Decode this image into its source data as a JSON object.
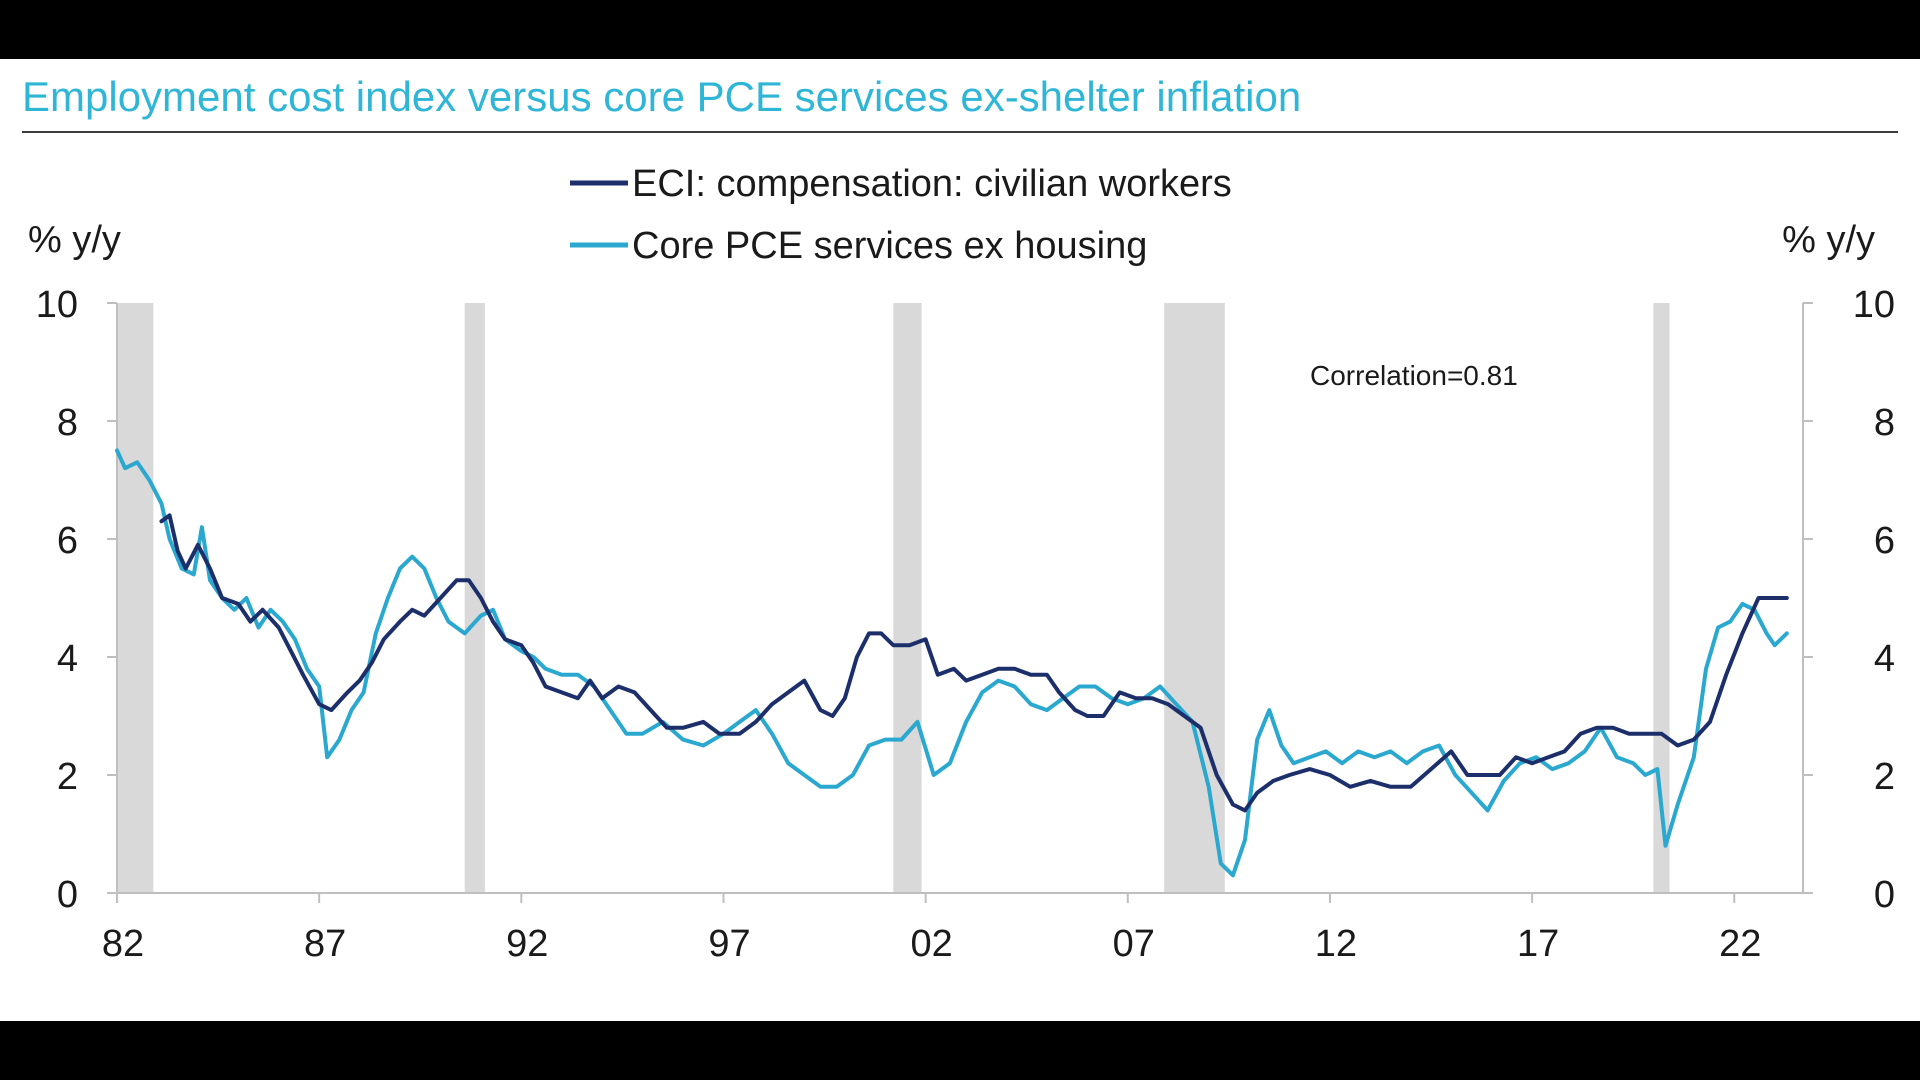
{
  "title": "Employment cost index versus core PCE services ex-shelter inflation",
  "colors": {
    "eci": "#1c2f6b",
    "pce": "#2aa8cf",
    "recession": "#d9d9d9",
    "title": "#2fb6d6"
  },
  "chart_data": {
    "type": "line",
    "left_unit": "% y/y",
    "right_unit": "% y/y",
    "annotation": "Correlation=0.81",
    "ylim": [
      0,
      10
    ],
    "xlim": [
      1982,
      2023.7
    ],
    "yticks": [
      0,
      2,
      4,
      6,
      8,
      10
    ],
    "ytick_labels": [
      "0",
      "2",
      "4",
      "6",
      "8",
      "10"
    ],
    "xticks": [
      1982,
      1987,
      1992,
      1997,
      2002,
      2007,
      2012,
      2017,
      2022
    ],
    "xtick_labels": [
      "82",
      "87",
      "92",
      "97",
      "02",
      "07",
      "12",
      "17",
      "22"
    ],
    "grid": false,
    "legend_position": "top-center",
    "recessions": [
      [
        1982.0,
        1982.9
      ],
      [
        1990.6,
        1991.1
      ],
      [
        2001.2,
        2001.9
      ],
      [
        2007.9,
        2009.4
      ],
      [
        2020.0,
        2020.4
      ]
    ],
    "series": [
      {
        "name": "ECI: compensation: civilian workers",
        "points": [
          [
            1983.1,
            6.3
          ],
          [
            1983.3,
            6.4
          ],
          [
            1983.5,
            5.8
          ],
          [
            1983.7,
            5.5
          ],
          [
            1984.0,
            5.9
          ],
          [
            1984.3,
            5.5
          ],
          [
            1984.6,
            5.0
          ],
          [
            1985.0,
            4.9
          ],
          [
            1985.3,
            4.6
          ],
          [
            1985.6,
            4.8
          ],
          [
            1986.0,
            4.5
          ],
          [
            1986.3,
            4.1
          ],
          [
            1986.6,
            3.7
          ],
          [
            1987.0,
            3.2
          ],
          [
            1987.3,
            3.1
          ],
          [
            1987.7,
            3.4
          ],
          [
            1988.0,
            3.6
          ],
          [
            1988.3,
            3.9
          ],
          [
            1988.6,
            4.3
          ],
          [
            1989.0,
            4.6
          ],
          [
            1989.3,
            4.8
          ],
          [
            1989.6,
            4.7
          ],
          [
            1990.0,
            5.0
          ],
          [
            1990.4,
            5.3
          ],
          [
            1990.7,
            5.3
          ],
          [
            1991.0,
            5.0
          ],
          [
            1991.3,
            4.6
          ],
          [
            1991.6,
            4.3
          ],
          [
            1992.0,
            4.2
          ],
          [
            1992.3,
            3.9
          ],
          [
            1992.6,
            3.5
          ],
          [
            1993.0,
            3.4
          ],
          [
            1993.4,
            3.3
          ],
          [
            1993.7,
            3.6
          ],
          [
            1994.0,
            3.3
          ],
          [
            1994.4,
            3.5
          ],
          [
            1994.8,
            3.4
          ],
          [
            1995.2,
            3.1
          ],
          [
            1995.6,
            2.8
          ],
          [
            1996.0,
            2.8
          ],
          [
            1996.5,
            2.9
          ],
          [
            1996.9,
            2.7
          ],
          [
            1997.4,
            2.7
          ],
          [
            1997.8,
            2.9
          ],
          [
            1998.2,
            3.2
          ],
          [
            1998.6,
            3.4
          ],
          [
            1999.0,
            3.6
          ],
          [
            1999.4,
            3.1
          ],
          [
            1999.7,
            3.0
          ],
          [
            2000.0,
            3.3
          ],
          [
            2000.3,
            4.0
          ],
          [
            2000.6,
            4.4
          ],
          [
            2000.9,
            4.4
          ],
          [
            2001.2,
            4.2
          ],
          [
            2001.6,
            4.2
          ],
          [
            2002.0,
            4.3
          ],
          [
            2002.3,
            3.7
          ],
          [
            2002.7,
            3.8
          ],
          [
            2003.0,
            3.6
          ],
          [
            2003.4,
            3.7
          ],
          [
            2003.8,
            3.8
          ],
          [
            2004.2,
            3.8
          ],
          [
            2004.6,
            3.7
          ],
          [
            2005.0,
            3.7
          ],
          [
            2005.3,
            3.4
          ],
          [
            2005.7,
            3.1
          ],
          [
            2006.0,
            3.0
          ],
          [
            2006.4,
            3.0
          ],
          [
            2006.8,
            3.4
          ],
          [
            2007.2,
            3.3
          ],
          [
            2007.6,
            3.3
          ],
          [
            2008.0,
            3.2
          ],
          [
            2008.4,
            3.0
          ],
          [
            2008.8,
            2.8
          ],
          [
            2009.2,
            2.0
          ],
          [
            2009.6,
            1.5
          ],
          [
            2009.9,
            1.4
          ],
          [
            2010.2,
            1.7
          ],
          [
            2010.6,
            1.9
          ],
          [
            2011.0,
            2.0
          ],
          [
            2011.5,
            2.1
          ],
          [
            2012.0,
            2.0
          ],
          [
            2012.5,
            1.8
          ],
          [
            2013.0,
            1.9
          ],
          [
            2013.5,
            1.8
          ],
          [
            2014.0,
            1.8
          ],
          [
            2014.5,
            2.1
          ],
          [
            2015.0,
            2.4
          ],
          [
            2015.4,
            2.0
          ],
          [
            2015.8,
            2.0
          ],
          [
            2016.2,
            2.0
          ],
          [
            2016.6,
            2.3
          ],
          [
            2017.0,
            2.2
          ],
          [
            2017.4,
            2.3
          ],
          [
            2017.8,
            2.4
          ],
          [
            2018.2,
            2.7
          ],
          [
            2018.6,
            2.8
          ],
          [
            2019.0,
            2.8
          ],
          [
            2019.4,
            2.7
          ],
          [
            2019.8,
            2.7
          ],
          [
            2020.2,
            2.7
          ],
          [
            2020.6,
            2.5
          ],
          [
            2021.0,
            2.6
          ],
          [
            2021.4,
            2.9
          ],
          [
            2021.8,
            3.7
          ],
          [
            2022.2,
            4.4
          ],
          [
            2022.6,
            5.0
          ],
          [
            2023.0,
            5.0
          ],
          [
            2023.3,
            5.0
          ]
        ]
      },
      {
        "name": "Core PCE services ex housing",
        "points": [
          [
            1982.0,
            7.5
          ],
          [
            1982.2,
            7.2
          ],
          [
            1982.5,
            7.3
          ],
          [
            1982.8,
            7.0
          ],
          [
            1983.1,
            6.6
          ],
          [
            1983.3,
            6.0
          ],
          [
            1983.6,
            5.5
          ],
          [
            1983.9,
            5.4
          ],
          [
            1984.1,
            6.2
          ],
          [
            1984.3,
            5.3
          ],
          [
            1984.6,
            5.0
          ],
          [
            1984.9,
            4.8
          ],
          [
            1985.2,
            5.0
          ],
          [
            1985.5,
            4.5
          ],
          [
            1985.8,
            4.8
          ],
          [
            1986.1,
            4.6
          ],
          [
            1986.4,
            4.3
          ],
          [
            1986.7,
            3.8
          ],
          [
            1987.0,
            3.5
          ],
          [
            1987.2,
            2.3
          ],
          [
            1987.5,
            2.6
          ],
          [
            1987.8,
            3.1
          ],
          [
            1988.1,
            3.4
          ],
          [
            1988.4,
            4.4
          ],
          [
            1988.7,
            5.0
          ],
          [
            1989.0,
            5.5
          ],
          [
            1989.3,
            5.7
          ],
          [
            1989.6,
            5.5
          ],
          [
            1989.9,
            5.0
          ],
          [
            1990.2,
            4.6
          ],
          [
            1990.6,
            4.4
          ],
          [
            1991.0,
            4.7
          ],
          [
            1991.3,
            4.8
          ],
          [
            1991.6,
            4.3
          ],
          [
            1992.0,
            4.1
          ],
          [
            1992.3,
            4.0
          ],
          [
            1992.6,
            3.8
          ],
          [
            1993.0,
            3.7
          ],
          [
            1993.4,
            3.7
          ],
          [
            1993.8,
            3.5
          ],
          [
            1994.2,
            3.1
          ],
          [
            1994.6,
            2.7
          ],
          [
            1995.0,
            2.7
          ],
          [
            1995.5,
            2.9
          ],
          [
            1996.0,
            2.6
          ],
          [
            1996.5,
            2.5
          ],
          [
            1997.0,
            2.7
          ],
          [
            1997.4,
            2.9
          ],
          [
            1997.8,
            3.1
          ],
          [
            1998.2,
            2.7
          ],
          [
            1998.6,
            2.2
          ],
          [
            1999.0,
            2.0
          ],
          [
            1999.4,
            1.8
          ],
          [
            1999.8,
            1.8
          ],
          [
            2000.2,
            2.0
          ],
          [
            2000.6,
            2.5
          ],
          [
            2001.0,
            2.6
          ],
          [
            2001.4,
            2.6
          ],
          [
            2001.8,
            2.9
          ],
          [
            2002.2,
            2.0
          ],
          [
            2002.6,
            2.2
          ],
          [
            2003.0,
            2.9
          ],
          [
            2003.4,
            3.4
          ],
          [
            2003.8,
            3.6
          ],
          [
            2004.2,
            3.5
          ],
          [
            2004.6,
            3.2
          ],
          [
            2005.0,
            3.1
          ],
          [
            2005.4,
            3.3
          ],
          [
            2005.8,
            3.5
          ],
          [
            2006.2,
            3.5
          ],
          [
            2006.6,
            3.3
          ],
          [
            2007.0,
            3.2
          ],
          [
            2007.4,
            3.3
          ],
          [
            2007.8,
            3.5
          ],
          [
            2008.2,
            3.2
          ],
          [
            2008.6,
            2.9
          ],
          [
            2009.0,
            1.8
          ],
          [
            2009.3,
            0.5
          ],
          [
            2009.6,
            0.3
          ],
          [
            2009.9,
            0.9
          ],
          [
            2010.2,
            2.6
          ],
          [
            2010.5,
            3.1
          ],
          [
            2010.8,
            2.5
          ],
          [
            2011.1,
            2.2
          ],
          [
            2011.5,
            2.3
          ],
          [
            2011.9,
            2.4
          ],
          [
            2012.3,
            2.2
          ],
          [
            2012.7,
            2.4
          ],
          [
            2013.1,
            2.3
          ],
          [
            2013.5,
            2.4
          ],
          [
            2013.9,
            2.2
          ],
          [
            2014.3,
            2.4
          ],
          [
            2014.7,
            2.5
          ],
          [
            2015.1,
            2.0
          ],
          [
            2015.5,
            1.7
          ],
          [
            2015.9,
            1.4
          ],
          [
            2016.3,
            1.9
          ],
          [
            2016.7,
            2.2
          ],
          [
            2017.1,
            2.3
          ],
          [
            2017.5,
            2.1
          ],
          [
            2017.9,
            2.2
          ],
          [
            2018.3,
            2.4
          ],
          [
            2018.7,
            2.8
          ],
          [
            2019.1,
            2.3
          ],
          [
            2019.5,
            2.2
          ],
          [
            2019.8,
            2.0
          ],
          [
            2020.1,
            2.1
          ],
          [
            2020.3,
            0.8
          ],
          [
            2020.6,
            1.5
          ],
          [
            2021.0,
            2.3
          ],
          [
            2021.3,
            3.8
          ],
          [
            2021.6,
            4.5
          ],
          [
            2021.9,
            4.6
          ],
          [
            2022.2,
            4.9
          ],
          [
            2022.5,
            4.8
          ],
          [
            2022.8,
            4.4
          ],
          [
            2023.0,
            4.2
          ],
          [
            2023.3,
            4.4
          ]
        ]
      }
    ]
  }
}
